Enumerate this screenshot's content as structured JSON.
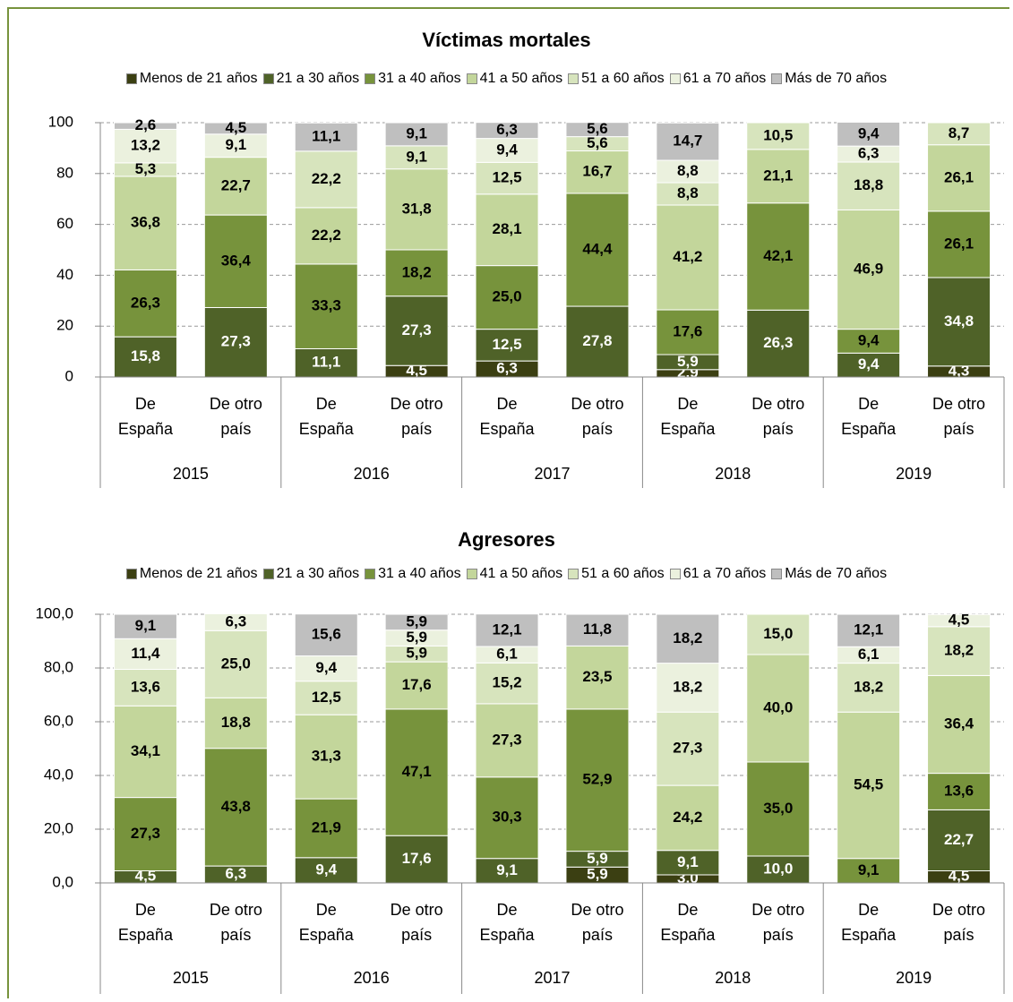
{
  "chart_data": [
    {
      "type": "stacked_bar",
      "title": "Víctimas mortales",
      "categories": [
        "De España",
        "De otro país",
        "De España",
        "De otro país",
        "De España",
        "De otro país",
        "De España",
        "De otro país",
        "De España",
        "De otro país"
      ],
      "groups": [
        "2015",
        "2016",
        "2017",
        "2018",
        "2019"
      ],
      "ylim": [
        0,
        100
      ],
      "yticks": [
        0,
        20,
        40,
        60,
        80,
        100
      ],
      "grid": true,
      "series": [
        {
          "name": "Menos de 21 años",
          "color": "#3b3f12",
          "values": [
            null,
            null,
            null,
            4.5,
            6.3,
            null,
            2.9,
            null,
            null,
            4.3
          ],
          "value_labels": [
            null,
            null,
            null,
            "4,5",
            "6,3",
            null,
            "2,9",
            null,
            null,
            "4,3"
          ]
        },
        {
          "name": "21 a 30 años",
          "color": "#4f6228",
          "values": [
            15.8,
            27.3,
            11.1,
            27.3,
            12.5,
            27.8,
            5.9,
            26.3,
            9.4,
            34.8
          ],
          "value_labels": [
            "15,8",
            "27,3",
            "11,1",
            "27,3",
            "12,5",
            "27,8",
            "5,9",
            "26,3",
            "9,4",
            "34,8"
          ]
        },
        {
          "name": "31 a 40 años",
          "color": "#77933c",
          "values": [
            26.3,
            36.4,
            33.3,
            18.2,
            25.0,
            44.4,
            17.6,
            42.1,
            9.4,
            26.1
          ],
          "value_labels": [
            "26,3",
            "36,4",
            "33,3",
            "18,2",
            "25,0",
            "44,4",
            "17,6",
            "42,1",
            "9,4",
            "26,1"
          ]
        },
        {
          "name": "41 a 50 años",
          "color": "#c3d69b",
          "values": [
            36.8,
            22.7,
            22.2,
            31.8,
            28.1,
            16.7,
            41.2,
            21.1,
            46.9,
            26.1
          ],
          "value_labels": [
            "36,8",
            "22,7",
            "22,2",
            "31,8",
            "28,1",
            "16,7",
            "41,2",
            "21,1",
            "46,9",
            "26,1"
          ]
        },
        {
          "name": "51 a 60 años",
          "color": "#d7e4bd",
          "values": [
            5.3,
            null,
            22.2,
            9.1,
            12.5,
            5.6,
            8.8,
            10.5,
            18.8,
            8.7
          ],
          "value_labels": [
            "5,3",
            null,
            "22,2",
            "9,1",
            "12,5",
            "5,6",
            "8,8",
            "10,5",
            "18,8",
            "8,7"
          ]
        },
        {
          "name": "61 a 70 años",
          "color": "#ebf1de",
          "values": [
            13.2,
            9.1,
            null,
            null,
            9.4,
            null,
            8.8,
            null,
            6.3,
            null
          ],
          "value_labels": [
            "13,2",
            "9,1",
            null,
            null,
            "9,4",
            null,
            "8,8",
            null,
            "6,3",
            null
          ]
        },
        {
          "name": "Más de 70 años",
          "color": "#bfbfbf",
          "values": [
            2.6,
            4.5,
            11.1,
            9.1,
            6.3,
            5.6,
            14.7,
            null,
            9.4,
            null
          ],
          "value_labels": [
            "2,6",
            "4,5",
            "11,1",
            "9,1",
            "6,3",
            "5,6",
            "14,7",
            null,
            "9,4",
            null
          ]
        }
      ]
    },
    {
      "type": "stacked_bar",
      "title": "Agresores",
      "categories": [
        "De España",
        "De otro país",
        "De España",
        "De otro país",
        "De España",
        "De otro país",
        "De España",
        "De otro país",
        "De España",
        "De otro país"
      ],
      "groups": [
        "2015",
        "2016",
        "2017",
        "2018",
        "2019"
      ],
      "ylim": [
        0,
        100
      ],
      "yticks": [
        {
          "value": 0,
          "label": "0,0"
        },
        {
          "value": 20,
          "label": "20,0"
        },
        {
          "value": 40,
          "label": "40,0"
        },
        {
          "value": 60,
          "label": "60,0"
        },
        {
          "value": 80,
          "label": "80,0"
        },
        {
          "value": 100,
          "label": "100,0"
        }
      ],
      "grid": true,
      "series": [
        {
          "name": "Menos de 21 años",
          "color": "#3b3f12",
          "values": [
            null,
            null,
            null,
            null,
            null,
            5.9,
            3.0,
            null,
            null,
            4.5
          ],
          "value_labels": [
            null,
            null,
            null,
            null,
            null,
            "5,9",
            "3,0",
            null,
            null,
            "4,5"
          ]
        },
        {
          "name": "21 a 30 años",
          "color": "#4f6228",
          "values": [
            4.5,
            6.3,
            9.4,
            17.6,
            9.1,
            5.9,
            9.1,
            10.0,
            null,
            22.7
          ],
          "value_labels": [
            "4,5",
            "6,3",
            "9,4",
            "17,6",
            "9,1",
            "5,9",
            "9,1",
            "10,0",
            null,
            "22,7"
          ]
        },
        {
          "name": "31 a 40 años",
          "color": "#77933c",
          "values": [
            27.3,
            43.8,
            21.9,
            47.1,
            30.3,
            52.9,
            null,
            35.0,
            9.1,
            13.6
          ],
          "value_labels": [
            "27,3",
            "43,8",
            "21,9",
            "47,1",
            "30,3",
            "52,9",
            null,
            "35,0",
            "9,1",
            "13,6"
          ]
        },
        {
          "name": "41 a 50 años",
          "color": "#c3d69b",
          "values": [
            34.1,
            18.8,
            31.3,
            17.6,
            27.3,
            23.5,
            24.2,
            40.0,
            54.5,
            36.4
          ],
          "value_labels": [
            "34,1",
            "18,8",
            "31,3",
            "17,6",
            "27,3",
            "23,5",
            "24,2",
            "40,0",
            "54,5",
            "36,4"
          ]
        },
        {
          "name": "51 a 60 años",
          "color": "#d7e4bd",
          "values": [
            13.6,
            25.0,
            12.5,
            5.9,
            15.2,
            null,
            27.3,
            15.0,
            18.2,
            18.2
          ],
          "value_labels": [
            "13,6",
            "25,0",
            "12,5",
            "5,9",
            "15,2",
            null,
            "27,3",
            "15,0",
            "18,2",
            "18,2"
          ]
        },
        {
          "name": "61 a 70 años",
          "color": "#ebf1de",
          "values": [
            11.4,
            6.3,
            9.4,
            5.9,
            6.1,
            null,
            18.2,
            null,
            6.1,
            4.5
          ],
          "value_labels": [
            "11,4",
            "6,3",
            "9,4",
            "5,9",
            "6,1",
            null,
            "18,2",
            null,
            "6,1",
            "4,5"
          ]
        },
        {
          "name": "Más de 70 años",
          "color": "#bfbfbf",
          "values": [
            9.1,
            null,
            15.6,
            5.9,
            12.1,
            11.8,
            18.2,
            null,
            12.1,
            null
          ],
          "value_labels": [
            "9,1",
            null,
            "15,6",
            "5,9",
            "12,1",
            "11,8",
            "18,2",
            null,
            "12,1",
            null
          ]
        }
      ]
    }
  ]
}
